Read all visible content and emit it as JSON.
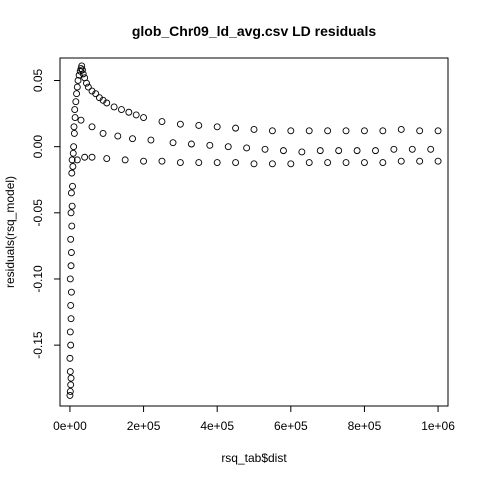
{
  "chart_data": {
    "type": "scatter",
    "title": "glob_Chr09_ld_avg.csv LD residuals",
    "xlabel": "rsq_tab$dist",
    "ylabel": "residuals(rsq_model)",
    "xlim": [
      -27000,
      1027000
    ],
    "ylim": [
      -0.196,
      0.067
    ],
    "grid": false,
    "legend": "none",
    "marker": "open-circle",
    "x_ticks": [
      {
        "value": 0,
        "label": "0e+00"
      },
      {
        "value": 200000,
        "label": "2e+05"
      },
      {
        "value": 400000,
        "label": "4e+05"
      },
      {
        "value": 600000,
        "label": "6e+05"
      },
      {
        "value": 800000,
        "label": "8e+05"
      },
      {
        "value": 1000000,
        "label": "1e+06"
      }
    ],
    "y_ticks": [
      {
        "value": 0.05,
        "label": "0.05"
      },
      {
        "value": 0.0,
        "label": "0.00"
      },
      {
        "value": -0.05,
        "label": "-0.05"
      },
      {
        "value": -0.1,
        "label": "-0.10"
      },
      {
        "value": -0.15,
        "label": "-0.15"
      }
    ],
    "series": [
      {
        "points": [
          [
            0,
            -0.188
          ],
          [
            1000,
            -0.185
          ],
          [
            2000,
            -0.18
          ],
          [
            1000,
            -0.17
          ],
          [
            3000,
            -0.175
          ],
          [
            0,
            -0.16
          ],
          [
            2000,
            -0.15
          ],
          [
            1000,
            -0.14
          ],
          [
            3000,
            -0.13
          ],
          [
            2000,
            -0.12
          ],
          [
            4000,
            -0.11
          ],
          [
            1000,
            -0.1
          ],
          [
            3000,
            -0.09
          ],
          [
            4000,
            -0.08
          ],
          [
            2000,
            -0.07
          ],
          [
            5000,
            -0.06
          ],
          [
            3000,
            -0.05
          ],
          [
            6000,
            -0.045
          ],
          [
            4000,
            -0.035
          ],
          [
            7000,
            -0.03
          ],
          [
            5000,
            -0.02
          ],
          [
            8000,
            -0.015
          ],
          [
            6000,
            -0.01
          ],
          [
            9000,
            -0.005
          ],
          [
            10000,
            0.0
          ],
          [
            12000,
            0.01
          ],
          [
            11000,
            0.015
          ],
          [
            14000,
            0.022
          ],
          [
            13000,
            0.028
          ],
          [
            16000,
            0.034
          ],
          [
            18000,
            0.04
          ],
          [
            20000,
            0.045
          ],
          [
            22000,
            0.05
          ],
          [
            25000,
            0.054
          ],
          [
            28000,
            0.057
          ],
          [
            30000,
            0.059
          ],
          [
            32000,
            0.061
          ],
          [
            34000,
            0.058
          ],
          [
            36000,
            0.055
          ],
          [
            40000,
            0.052
          ],
          [
            45000,
            0.048
          ],
          [
            50000,
            0.045
          ],
          [
            60000,
            0.042
          ],
          [
            70000,
            0.04
          ],
          [
            80000,
            0.037
          ],
          [
            90000,
            0.035
          ],
          [
            100000,
            0.033
          ],
          [
            120000,
            0.03
          ],
          [
            140000,
            0.028
          ],
          [
            160000,
            0.026
          ],
          [
            180000,
            0.024
          ],
          [
            200000,
            0.022
          ],
          [
            250000,
            0.019
          ],
          [
            300000,
            0.017
          ],
          [
            350000,
            0.016
          ],
          [
            400000,
            0.015
          ],
          [
            450000,
            0.014
          ],
          [
            500000,
            0.013
          ],
          [
            550000,
            0.012
          ],
          [
            600000,
            0.012
          ],
          [
            650000,
            0.012
          ],
          [
            700000,
            0.012
          ],
          [
            750000,
            0.012
          ],
          [
            800000,
            0.012
          ],
          [
            850000,
            0.012
          ],
          [
            900000,
            0.013
          ],
          [
            950000,
            0.012
          ],
          [
            1000000,
            0.012
          ],
          [
            20000,
            -0.01
          ],
          [
            40000,
            -0.008
          ],
          [
            60000,
            -0.008
          ],
          [
            100000,
            -0.009
          ],
          [
            150000,
            -0.01
          ],
          [
            200000,
            -0.011
          ],
          [
            250000,
            -0.011
          ],
          [
            300000,
            -0.012
          ],
          [
            350000,
            -0.012
          ],
          [
            400000,
            -0.012
          ],
          [
            450000,
            -0.012
          ],
          [
            500000,
            -0.013
          ],
          [
            550000,
            -0.013
          ],
          [
            600000,
            -0.013
          ],
          [
            650000,
            -0.012
          ],
          [
            700000,
            -0.012
          ],
          [
            750000,
            -0.012
          ],
          [
            800000,
            -0.012
          ],
          [
            850000,
            -0.012
          ],
          [
            900000,
            -0.011
          ],
          [
            950000,
            -0.011
          ],
          [
            1000000,
            -0.011
          ],
          [
            30000,
            0.02
          ],
          [
            60000,
            0.015
          ],
          [
            90000,
            0.01
          ],
          [
            130000,
            0.008
          ],
          [
            170000,
            0.006
          ],
          [
            220000,
            0.005
          ],
          [
            280000,
            0.003
          ],
          [
            330000,
            0.002
          ],
          [
            380000,
            0.001
          ],
          [
            430000,
            0.0
          ],
          [
            480000,
            -0.001
          ],
          [
            530000,
            -0.002
          ],
          [
            580000,
            -0.003
          ],
          [
            630000,
            -0.004
          ],
          [
            680000,
            -0.003
          ],
          [
            730000,
            -0.003
          ],
          [
            780000,
            -0.003
          ],
          [
            830000,
            -0.003
          ],
          [
            880000,
            -0.002
          ],
          [
            930000,
            -0.002
          ],
          [
            980000,
            -0.002
          ]
        ]
      }
    ]
  }
}
